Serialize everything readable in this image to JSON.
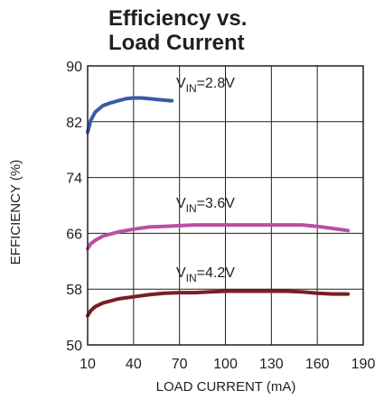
{
  "chart_data": {
    "type": "line",
    "title_lines": [
      "Efficiency vs.",
      "Load Current"
    ],
    "xlabel": "LOAD CURRENT (mA)",
    "ylabel": "EFFICIENCY (%)",
    "xlim": [
      10,
      190
    ],
    "ylim": [
      50,
      90
    ],
    "xticks": [
      10,
      40,
      70,
      100,
      130,
      160,
      190
    ],
    "yticks": [
      50,
      58,
      66,
      74,
      82,
      90
    ],
    "grid": true,
    "series": [
      {
        "name": "VIN=2.8V",
        "label_main": "V",
        "label_sub": "IN",
        "label_rest": "=2.8V",
        "color": "#3a5aa8",
        "x": [
          10,
          12,
          15,
          20,
          25,
          30,
          35,
          40,
          45,
          50,
          55,
          60,
          65
        ],
        "y": [
          80.5,
          82.2,
          83.4,
          84.3,
          84.7,
          85.0,
          85.3,
          85.4,
          85.4,
          85.3,
          85.2,
          85.1,
          85.0
        ]
      },
      {
        "name": "VIN=3.6V",
        "label_main": "V",
        "label_sub": "IN",
        "label_rest": "=3.6V",
        "color": "#b94fa6",
        "x": [
          10,
          12,
          15,
          20,
          30,
          40,
          50,
          60,
          70,
          80,
          90,
          100,
          120,
          140,
          150,
          160,
          170,
          180
        ],
        "y": [
          63.8,
          64.5,
          65.0,
          65.6,
          66.2,
          66.6,
          66.9,
          67.0,
          67.1,
          67.2,
          67.2,
          67.2,
          67.2,
          67.2,
          67.2,
          67.0,
          66.7,
          66.4
        ]
      },
      {
        "name": "VIN=4.2V",
        "label_main": "V",
        "label_sub": "IN",
        "label_rest": "=4.2V",
        "color": "#7a1e24",
        "x": [
          10,
          12,
          15,
          20,
          30,
          40,
          50,
          60,
          70,
          80,
          90,
          100,
          120,
          140,
          150,
          160,
          170,
          180
        ],
        "y": [
          54.2,
          54.9,
          55.5,
          56.0,
          56.6,
          56.9,
          57.2,
          57.4,
          57.5,
          57.5,
          57.6,
          57.7,
          57.7,
          57.7,
          57.6,
          57.4,
          57.3,
          57.3
        ]
      }
    ]
  }
}
